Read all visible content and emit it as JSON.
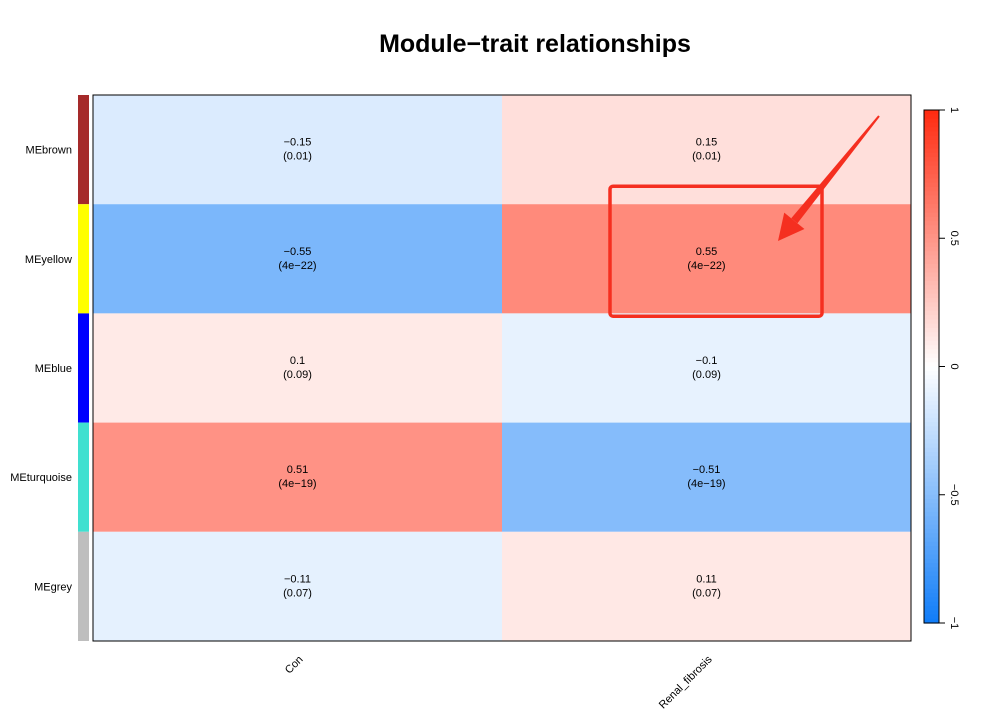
{
  "chart_data": {
    "type": "heatmap",
    "title": "Module−trait relationships",
    "rows": [
      "MEbrown",
      "MEyellow",
      "MEblue",
      "MEturquoise",
      "MEgrey"
    ],
    "row_colors": [
      "#a52a2a",
      "#ffff00",
      "#0000ff",
      "#40e0d0",
      "#bebebe"
    ],
    "columns": [
      "Con",
      "Renal_fibrosis"
    ],
    "values": [
      [
        -0.15,
        0.15
      ],
      [
        -0.55,
        0.55
      ],
      [
        0.1,
        -0.1
      ],
      [
        0.51,
        -0.51
      ],
      [
        -0.11,
        0.11
      ]
    ],
    "labels": [
      [
        {
          "value": "−0.15",
          "p": "(0.01)"
        },
        {
          "value": "0.15",
          "p": "(0.01)"
        }
      ],
      [
        {
          "value": "−0.55",
          "p": "(4e−22)"
        },
        {
          "value": "0.55",
          "p": "(4e−22)"
        }
      ],
      [
        {
          "value": "0.1",
          "p": "(0.09)"
        },
        {
          "value": "−0.1",
          "p": "(0.09)"
        }
      ],
      [
        {
          "value": "0.51",
          "p": "(4e−19)"
        },
        {
          "value": "−0.51",
          "p": "(4e−19)"
        }
      ],
      [
        {
          "value": "−0.11",
          "p": "(0.07)"
        },
        {
          "value": "0.11",
          "p": "(0.07)"
        }
      ]
    ],
    "colorscale": {
      "range": [
        -1,
        1
      ],
      "low": "#0f7cf8",
      "mid": "#ffffff",
      "high": "#ff2a0f",
      "ticks": [
        1,
        0.5,
        0,
        -0.5,
        -1
      ],
      "tick_labels": [
        "1",
        "0.5",
        "0",
        "−0.5",
        "−1"
      ]
    },
    "annotation": {
      "type": "highlight-box-with-arrow",
      "target_row": 1,
      "target_col": 1,
      "color": "#f52f20"
    }
  }
}
